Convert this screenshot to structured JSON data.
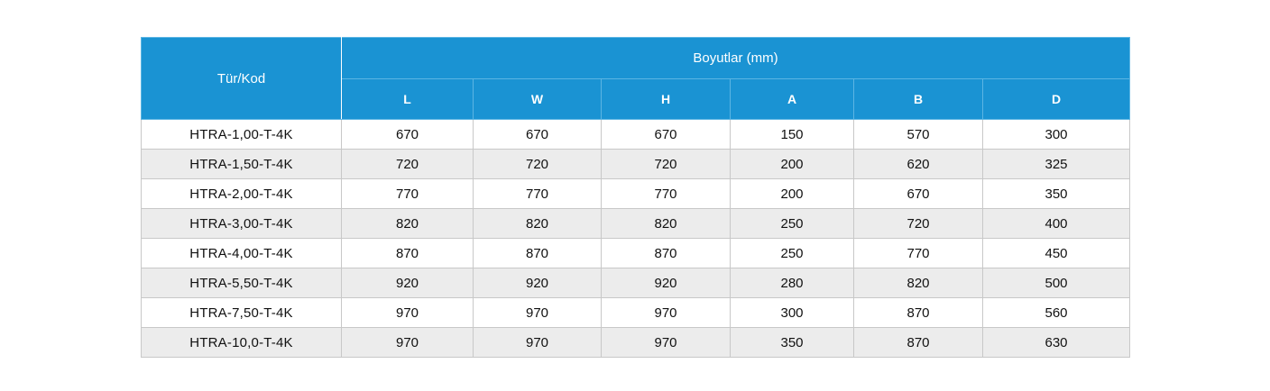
{
  "table": {
    "corner_header": "Tür/Kod",
    "group_header": "Boyutlar (mm)",
    "columns": [
      "L",
      "W",
      "H",
      "A",
      "B",
      "D"
    ],
    "rows": [
      {
        "code": "HTRA-1,00-T-4K",
        "values": [
          "670",
          "670",
          "670",
          "150",
          "570",
          "300"
        ]
      },
      {
        "code": "HTRA-1,50-T-4K",
        "values": [
          "720",
          "720",
          "720",
          "200",
          "620",
          "325"
        ]
      },
      {
        "code": "HTRA-2,00-T-4K",
        "values": [
          "770",
          "770",
          "770",
          "200",
          "670",
          "350"
        ]
      },
      {
        "code": "HTRA-3,00-T-4K",
        "values": [
          "820",
          "820",
          "820",
          "250",
          "720",
          "400"
        ]
      },
      {
        "code": "HTRA-4,00-T-4K",
        "values": [
          "870",
          "870",
          "870",
          "250",
          "770",
          "450"
        ]
      },
      {
        "code": "HTRA-5,50-T-4K",
        "values": [
          "920",
          "920",
          "920",
          "280",
          "820",
          "500"
        ]
      },
      {
        "code": "HTRA-7,50-T-4K",
        "values": [
          "970",
          "970",
          "970",
          "300",
          "870",
          "560"
        ]
      },
      {
        "code": "HTRA-10,0-T-4K",
        "values": [
          "970",
          "970",
          "970",
          "350",
          "870",
          "630"
        ]
      }
    ],
    "colors": {
      "header_bg": "#1a93d3",
      "header_text": "#ffffff",
      "stripe_bg": "#ececec"
    }
  }
}
